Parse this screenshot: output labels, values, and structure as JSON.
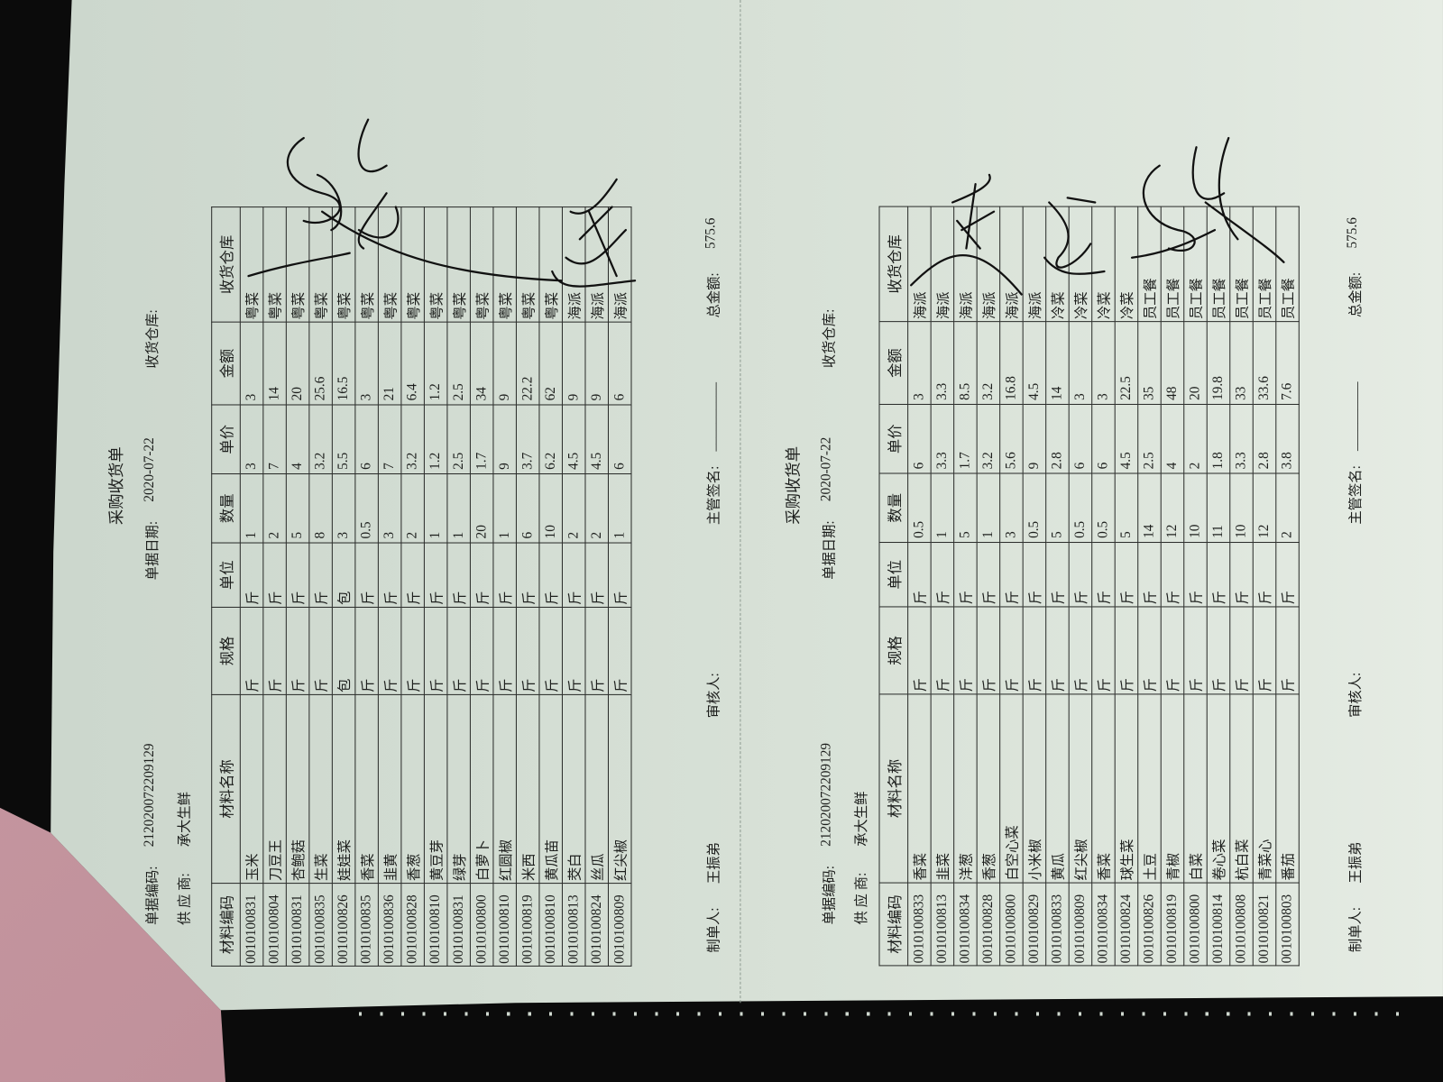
{
  "forms": [
    {
      "title": "采购收货单",
      "code_label": "单据编码:",
      "code": "212020072209129",
      "date_label": "单据日期:",
      "date": "2020-07-22",
      "warehouse_label": "收货仓库:",
      "supplier_label": "供 应 商:",
      "supplier": "承大生鲜",
      "columns": [
        "材料编码",
        "材料名称",
        "规格",
        "单位",
        "数量",
        "单价",
        "金额",
        "收货仓库"
      ],
      "rows": [
        [
          "0010100831",
          "玉米",
          "斤",
          "斤",
          "1",
          "3",
          "3",
          "粤菜"
        ],
        [
          "0010100804",
          "刀豆王",
          "斤",
          "斤",
          "2",
          "7",
          "14",
          "粤菜"
        ],
        [
          "0010100831",
          "杏鲍菇",
          "斤",
          "斤",
          "5",
          "4",
          "20",
          "粤菜"
        ],
        [
          "0010100835",
          "生菜",
          "斤",
          "斤",
          "8",
          "3.2",
          "25.6",
          "粤菜"
        ],
        [
          "0010100826",
          "娃娃菜",
          "包",
          "包",
          "3",
          "5.5",
          "16.5",
          "粤菜"
        ],
        [
          "0010100835",
          "香菜",
          "斤",
          "斤",
          "0.5",
          "6",
          "3",
          "粤菜"
        ],
        [
          "0010100836",
          "韭黄",
          "斤",
          "斤",
          "3",
          "7",
          "21",
          "粤菜"
        ],
        [
          "0010100828",
          "香葱",
          "斤",
          "斤",
          "2",
          "3.2",
          "6.4",
          "粤菜"
        ],
        [
          "0010100810",
          "黄豆芽",
          "斤",
          "斤",
          "1",
          "1.2",
          "1.2",
          "粤菜"
        ],
        [
          "0010100831",
          "绿芽",
          "斤",
          "斤",
          "1",
          "2.5",
          "2.5",
          "粤菜"
        ],
        [
          "0010100800",
          "白萝卜",
          "斤",
          "斤",
          "20",
          "1.7",
          "34",
          "粤菜"
        ],
        [
          "0010100810",
          "红圆椒",
          "斤",
          "斤",
          "1",
          "9",
          "9",
          "粤菜"
        ],
        [
          "0010100819",
          "米西",
          "斤",
          "斤",
          "6",
          "3.7",
          "22.2",
          "粤菜"
        ],
        [
          "0010100810",
          "黄瓜苗",
          "斤",
          "斤",
          "10",
          "6.2",
          "62",
          "粤菜"
        ],
        [
          "0010100813",
          "茭白",
          "斤",
          "斤",
          "2",
          "4.5",
          "9",
          "海派"
        ],
        [
          "0010100824",
          "丝瓜",
          "斤",
          "斤",
          "2",
          "4.5",
          "9",
          "海派"
        ],
        [
          "0010100809",
          "红尖椒",
          "斤",
          "斤",
          "1",
          "6",
          "6",
          "海派"
        ]
      ],
      "maker_label": "制单人:",
      "maker": "王振弟",
      "reviewer_label": "审核人:",
      "supervisor_label": "主管签名:",
      "supervisor_blank": "__________",
      "total_label": "总金额:",
      "total": "575.6"
    },
    {
      "title": "采购收货单",
      "code_label": "单据编码:",
      "code": "212020072209129",
      "date_label": "单据日期:",
      "date": "2020-07-22",
      "warehouse_label": "收货仓库:",
      "supplier_label": "供 应 商:",
      "supplier": "承大生鲜",
      "columns": [
        "材料编码",
        "材料名称",
        "规格",
        "单位",
        "数量",
        "单价",
        "金额",
        "收货仓库"
      ],
      "rows": [
        [
          "0010100833",
          "香菜",
          "斤",
          "斤",
          "0.5",
          "6",
          "3",
          "海派"
        ],
        [
          "0010100813",
          "韭菜",
          "斤",
          "斤",
          "1",
          "3.3",
          "3.3",
          "海派"
        ],
        [
          "0010100834",
          "洋葱",
          "斤",
          "斤",
          "5",
          "1.7",
          "8.5",
          "海派"
        ],
        [
          "0010100828",
          "香葱",
          "斤",
          "斤",
          "1",
          "3.2",
          "3.2",
          "海派"
        ],
        [
          "0010100800",
          "白空心菜",
          "斤",
          "斤",
          "3",
          "5.6",
          "16.8",
          "海派"
        ],
        [
          "0010100829",
          "小米椒",
          "斤",
          "斤",
          "0.5",
          "9",
          "4.5",
          "海派"
        ],
        [
          "0010100833",
          "黄瓜",
          "斤",
          "斤",
          "5",
          "2.8",
          "14",
          "冷菜"
        ],
        [
          "0010100809",
          "红尖椒",
          "斤",
          "斤",
          "0.5",
          "6",
          "3",
          "冷菜"
        ],
        [
          "0010100834",
          "香菜",
          "斤",
          "斤",
          "0.5",
          "6",
          "3",
          "冷菜"
        ],
        [
          "0010100824",
          "球生菜",
          "斤",
          "斤",
          "5",
          "4.5",
          "22.5",
          "冷菜"
        ],
        [
          "0010100826",
          "土豆",
          "斤",
          "斤",
          "14",
          "2.5",
          "35",
          "员工餐"
        ],
        [
          "0010100819",
          "青椒",
          "斤",
          "斤",
          "12",
          "4",
          "48",
          "员工餐"
        ],
        [
          "0010100800",
          "白菜",
          "斤",
          "斤",
          "10",
          "2",
          "20",
          "员工餐"
        ],
        [
          "0010100814",
          "卷心菜",
          "斤",
          "斤",
          "11",
          "1.8",
          "19.8",
          "员工餐"
        ],
        [
          "0010100808",
          "杭白菜",
          "斤",
          "斤",
          "10",
          "3.3",
          "33",
          "员工餐"
        ],
        [
          "0010100821",
          "青菜心",
          "斤",
          "斤",
          "12",
          "2.8",
          "33.6",
          "员工餐"
        ],
        [
          "0010100803",
          "番茄",
          "斤",
          "斤",
          "2",
          "3.8",
          "7.6",
          "员工餐"
        ]
      ],
      "maker_label": "制单人:",
      "maker": "王振弟",
      "reviewer_label": "审核人:",
      "supervisor_label": "主管签名:",
      "supervisor_blank": "__________",
      "total_label": "总金额:",
      "total": "575.6"
    }
  ],
  "colors": {
    "paper": "#d6dfd5",
    "ink": "#1d1f1d",
    "signature_ink": "#111111"
  }
}
